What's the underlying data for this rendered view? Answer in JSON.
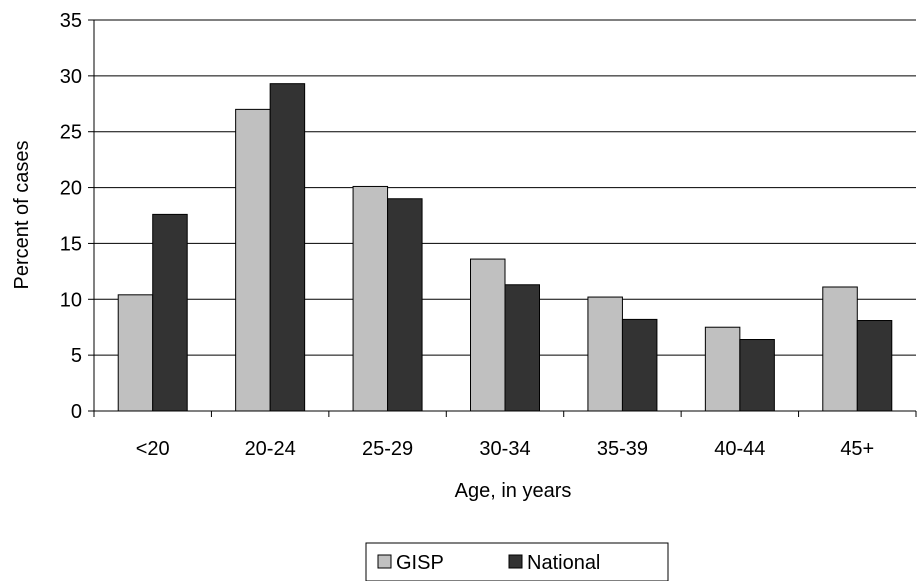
{
  "chart_data": {
    "type": "bar",
    "title": "",
    "xlabel": "Age, in years",
    "ylabel": "Percent of cases",
    "categories": [
      "<20",
      "20-24",
      "25-29",
      "30-34",
      "35-39",
      "40-44",
      "45+"
    ],
    "series": [
      {
        "name": "GISP",
        "color": "#c0c0c0",
        "values": [
          10.4,
          27.0,
          20.1,
          13.6,
          10.2,
          7.5,
          11.1
        ]
      },
      {
        "name": "National",
        "color": "#333333",
        "values": [
          17.6,
          29.3,
          19.0,
          11.3,
          8.2,
          6.4,
          8.1
        ]
      }
    ],
    "ylim": [
      0,
      35
    ],
    "yticks": [
      0,
      5,
      10,
      15,
      20,
      25,
      30,
      35
    ],
    "grid": true,
    "legend_position": "bottom-center"
  }
}
